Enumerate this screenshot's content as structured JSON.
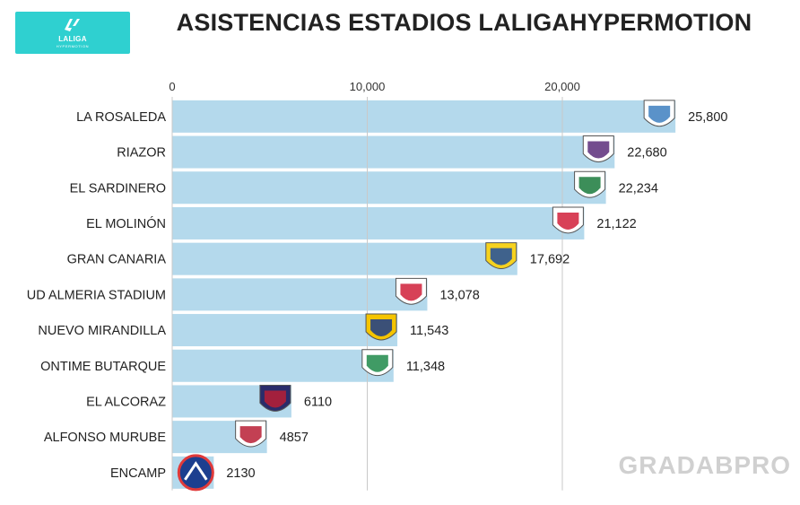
{
  "header": {
    "title": "ASISTENCIAS ESTADIOS LALIGAHYPERMOTION",
    "logo_text": "LALIGA",
    "logo_subtext": "HYPERMOTION",
    "logo_color": "#2fd0d0"
  },
  "watermark": "GRADABPRO",
  "chart_data": {
    "type": "bar",
    "orientation": "horizontal",
    "categories": [
      "LA ROSALEDA",
      "RIAZOR",
      "EL SARDINERO",
      "EL MOLINÓN",
      "GRAN CANARIA",
      "UD ALMERIA STADIUM",
      "NUEVO MIRANDILLA",
      "ONTIME BUTARQUE",
      "EL ALCORAZ",
      "ALFONSO MURUBE",
      "ENCAMP"
    ],
    "values": [
      25800,
      22680,
      22234,
      21122,
      17692,
      13078,
      11543,
      11348,
      6110,
      4857,
      2130
    ],
    "value_labels": [
      "25,800",
      "22,680",
      "22,234",
      "21,122",
      "17,692",
      "13,078",
      "11,543",
      "11,348",
      "6110",
      "4857",
      "2130"
    ],
    "club_badges": [
      "malaga-badge-icon",
      "deportivo-badge-icon",
      "racing-badge-icon",
      "sporting-badge-icon",
      "las-palmas-badge-icon",
      "almeria-badge-icon",
      "cadiz-badge-icon",
      "leganes-badge-icon",
      "huesca-badge-icon",
      "ceuta-badge-icon",
      "andorra-badge-icon"
    ],
    "xlim": [
      0,
      27000
    ],
    "xticks": [
      0,
      10000,
      20000
    ],
    "xtick_labels": [
      "0",
      "10,000",
      "20,000"
    ],
    "grid": true,
    "bar_color": "#b4d9ec"
  }
}
